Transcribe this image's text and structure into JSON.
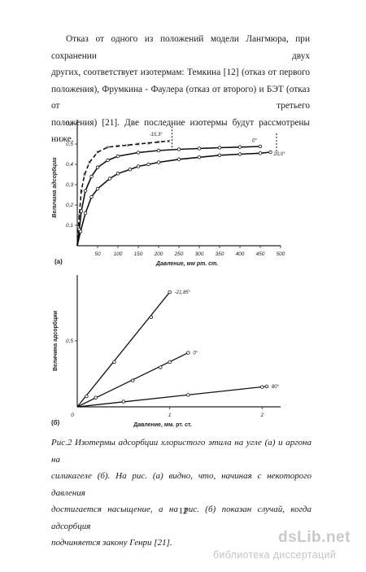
{
  "paragraph": {
    "lines": [
      "Отказ от одного из положений модели Лангмюра, при сохранении двух",
      "других, соответствует изотермам: Темкина [12] (отказ от первого",
      "положения), Фрумкина - Фаулера (отказ от второго) и БЭТ (отказ от третьего",
      "положения) [21]. Две последние изотермы будут рассмотрены ниже."
    ]
  },
  "chart_data": [
    {
      "type": "line",
      "panel_label": "(а)",
      "xlabel": "Давление, мм рт. ст.",
      "ylabel": "Величина адсорбции",
      "x_ticks": [
        50,
        100,
        150,
        200,
        250,
        300,
        350,
        400,
        450,
        500
      ],
      "y_ticks": [
        0.1,
        0.2,
        0.3,
        0.4,
        0.5,
        0.6
      ],
      "xlim": [
        0,
        500
      ],
      "ylim": [
        0,
        0.62
      ],
      "series": [
        {
          "name": "-15,3°",
          "marker": "x",
          "x": [
            5,
            10,
            18,
            30,
            50,
            75,
            100,
            125,
            150,
            175,
            200,
            225
          ],
          "y": [
            0.15,
            0.27,
            0.35,
            0.41,
            0.46,
            0.485,
            0.49,
            0.495,
            0.5,
            0.505,
            0.51,
            0.515
          ]
        },
        {
          "name": "0°",
          "marker": "o",
          "x": [
            5,
            10,
            20,
            35,
            50,
            75,
            100,
            150,
            200,
            250,
            300,
            350,
            400,
            450
          ],
          "y": [
            0.08,
            0.17,
            0.27,
            0.34,
            0.385,
            0.42,
            0.44,
            0.458,
            0.468,
            0.474,
            0.478,
            0.482,
            0.485,
            0.488
          ]
        },
        {
          "name": "20,0°",
          "marker": "o",
          "x": [
            8,
            20,
            35,
            50,
            80,
            100,
            130,
            150,
            175,
            200,
            250,
            300,
            350,
            400,
            450,
            475
          ],
          "y": [
            0.07,
            0.16,
            0.24,
            0.28,
            0.33,
            0.355,
            0.375,
            0.39,
            0.4,
            0.41,
            0.425,
            0.435,
            0.445,
            0.45,
            0.455,
            0.46
          ]
        }
      ],
      "annotations": [
        "-15,3°",
        "0°",
        "20,0°"
      ]
    },
    {
      "type": "line",
      "panel_label": "(б)",
      "xlabel": "Давление, мм. рт. ст.",
      "ylabel": "Величина адсорбции",
      "x_ticks": [
        "0",
        "1",
        "2"
      ],
      "y_ticks": [
        "0,5"
      ],
      "xlim": [
        0,
        2.2
      ],
      "ylim": [
        0,
        1.0
      ],
      "series": [
        {
          "name": "-21,85°",
          "marker": "o",
          "x": [
            0.1,
            0.4,
            0.8,
            1.0
          ],
          "y": [
            0.08,
            0.34,
            0.68,
            0.87
          ]
        },
        {
          "name": "0°",
          "marker": "o",
          "x": [
            0.2,
            0.6,
            0.9,
            1.0,
            1.2
          ],
          "y": [
            0.07,
            0.2,
            0.3,
            0.34,
            0.41
          ]
        },
        {
          "name": "80°",
          "marker": "o",
          "x": [
            0.5,
            1.2,
            2.0,
            2.05
          ],
          "y": [
            0.04,
            0.09,
            0.15,
            0.155
          ]
        }
      ],
      "annotations": [
        "-21,85°",
        "0°",
        "80°"
      ]
    }
  ],
  "caption": {
    "lines": [
      "Рис.2    Изотермы адсорбции хлористого этила на угле (а) и аргона на",
      "силикагеле (б). На рис. (а) видно, что, начиная с некоторого давления",
      "достигается насыщение, а на рис. (б) показан случай, когда адсорбция",
      "подчиняется закону Генри [21]."
    ]
  },
  "page_number": "12",
  "watermark": {
    "logo": "dsLib.net",
    "subtitle": "библиотека диссертаций"
  }
}
